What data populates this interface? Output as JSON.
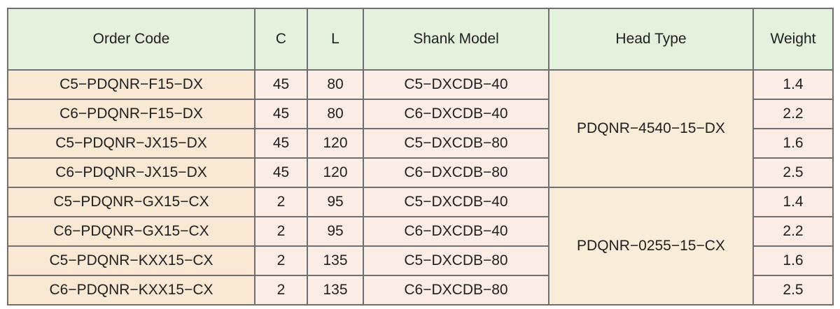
{
  "table": {
    "headers": [
      "Order Code",
      "C",
      "L",
      "Shank Model",
      "Head Type",
      "Weight"
    ],
    "head_types": [
      "PDQNR−4540−15−DX",
      "PDQNR−0255−15−CX"
    ],
    "rows": [
      {
        "order_code": "C5−PDQNR−F15−DX",
        "c": "45",
        "l": "80",
        "shank": "C5−DXCDB−40",
        "weight": "1.4"
      },
      {
        "order_code": "C6−PDQNR−F15−DX",
        "c": "45",
        "l": "80",
        "shank": "C6−DXCDB−40",
        "weight": "2.2"
      },
      {
        "order_code": "C5−PDQNR−JX15−DX",
        "c": "45",
        "l": "120",
        "shank": "C5−DXCDB−80",
        "weight": "1.6"
      },
      {
        "order_code": "C6−PDQNR−JX15−DX",
        "c": "45",
        "l": "120",
        "shank": "C6−DXCDB−80",
        "weight": "2.5"
      },
      {
        "order_code": "C5−PDQNR−GX15−CX",
        "c": "2",
        "l": "95",
        "shank": "C5−DXCDB−40",
        "weight": "1.4"
      },
      {
        "order_code": "C6−PDQNR−GX15−CX",
        "c": "2",
        "l": "95",
        "shank": "C6−DXCDB−40",
        "weight": "2.2"
      },
      {
        "order_code": "C5−PDQNR−KXX15−CX",
        "c": "2",
        "l": "135",
        "shank": "C5−DXCDB−80",
        "weight": "1.6"
      },
      {
        "order_code": "C6−PDQNR−KXX15−CX",
        "c": "2",
        "l": "135",
        "shank": "C6−DXCDB−80",
        "weight": "2.5"
      }
    ]
  },
  "colors": {
    "header_bg": "#e3f1dd",
    "code_bg": "#f9e8d3",
    "cell_bg": "#fbece6",
    "border": "#6f6f6f"
  }
}
